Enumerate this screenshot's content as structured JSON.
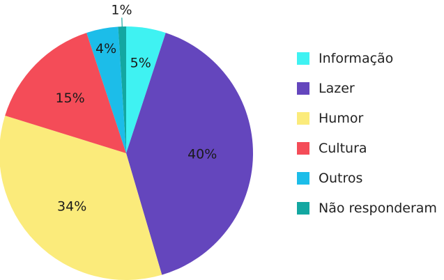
{
  "chart_data": {
    "type": "pie",
    "legend_position": "right",
    "slices": [
      {
        "label": "Informação",
        "value": 5,
        "color": "#3ff2f2",
        "value_label": "5%"
      },
      {
        "label": "Lazer",
        "value": 40,
        "color": "#6446bd",
        "value_label": "40%"
      },
      {
        "label": "Humor",
        "value": 34,
        "color": "#fbeb7b",
        "value_label": "34%"
      },
      {
        "label": "Cultura",
        "value": 15,
        "color": "#f44c58",
        "value_label": "15%"
      },
      {
        "label": "Outros",
        "value": 4,
        "color": "#1cbde9",
        "value_label": "4%"
      },
      {
        "label": "Não responderam",
        "value": 1,
        "color": "#13a7a1",
        "value_label": "1%"
      }
    ]
  }
}
